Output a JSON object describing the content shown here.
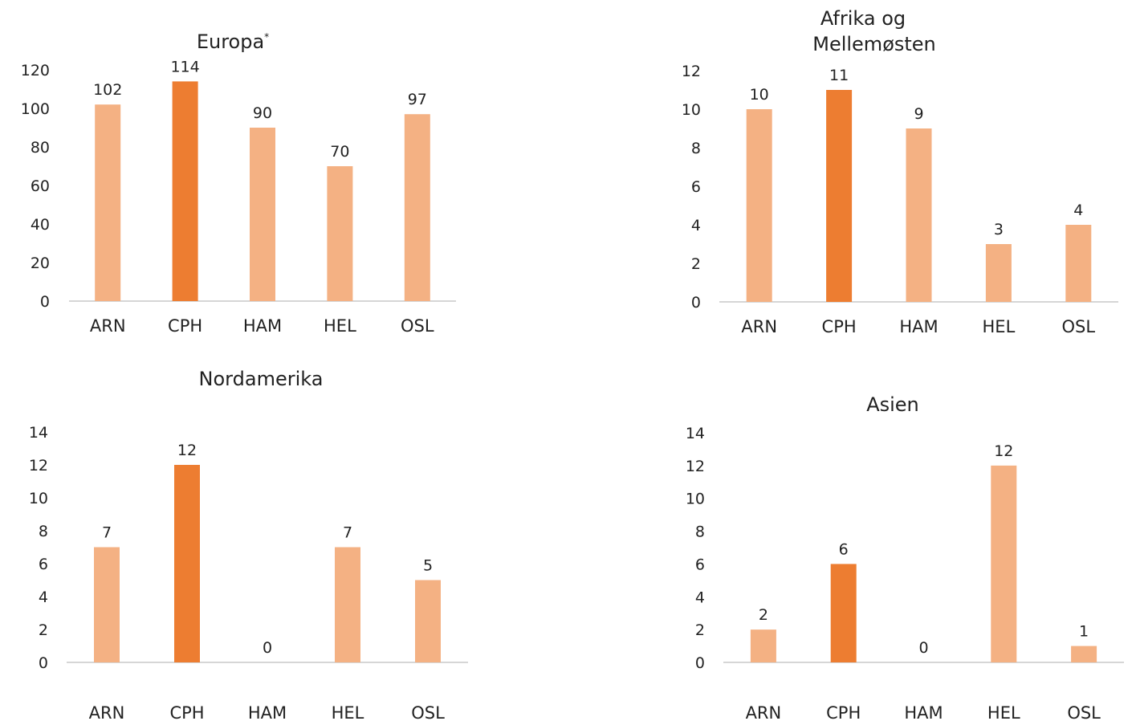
{
  "colors": {
    "bar": "#f4b183",
    "highlight": "#ed7d31",
    "axis": "#c8c8c8"
  },
  "chart_data": [
    {
      "type": "bar",
      "title": "Europa*",
      "categories": [
        "ARN",
        "CPH",
        "HAM",
        "HEL",
        "OSL"
      ],
      "values": [
        102,
        114,
        90,
        70,
        97
      ],
      "highlight_category": "CPH",
      "ylim": [
        0,
        120
      ],
      "yticks": [
        0,
        20,
        40,
        60,
        80,
        100,
        120
      ],
      "grid": false
    },
    {
      "type": "bar",
      "title": "Afrika og Mellemøsten",
      "categories": [
        "ARN",
        "CPH",
        "HAM",
        "HEL",
        "OSL"
      ],
      "values": [
        10,
        11,
        9,
        3,
        4
      ],
      "highlight_category": "CPH",
      "ylim": [
        0,
        12
      ],
      "yticks": [
        0,
        2,
        4,
        6,
        8,
        10,
        12
      ],
      "grid": false
    },
    {
      "type": "bar",
      "title": "Nordamerika",
      "categories": [
        "ARN",
        "CPH",
        "HAM",
        "HEL",
        "OSL"
      ],
      "values": [
        7,
        12,
        0,
        7,
        5
      ],
      "highlight_category": "CPH",
      "ylim": [
        0,
        14
      ],
      "yticks": [
        0,
        2,
        4,
        6,
        8,
        10,
        12,
        14
      ],
      "grid": false
    },
    {
      "type": "bar",
      "title": "Asien",
      "categories": [
        "ARN",
        "CPH",
        "HAM",
        "HEL",
        "OSL"
      ],
      "values": [
        2,
        6,
        0,
        12,
        1
      ],
      "highlight_category": "CPH",
      "ylim": [
        0,
        14
      ],
      "yticks": [
        0,
        2,
        4,
        6,
        8,
        10,
        12,
        14
      ],
      "grid": false
    }
  ]
}
